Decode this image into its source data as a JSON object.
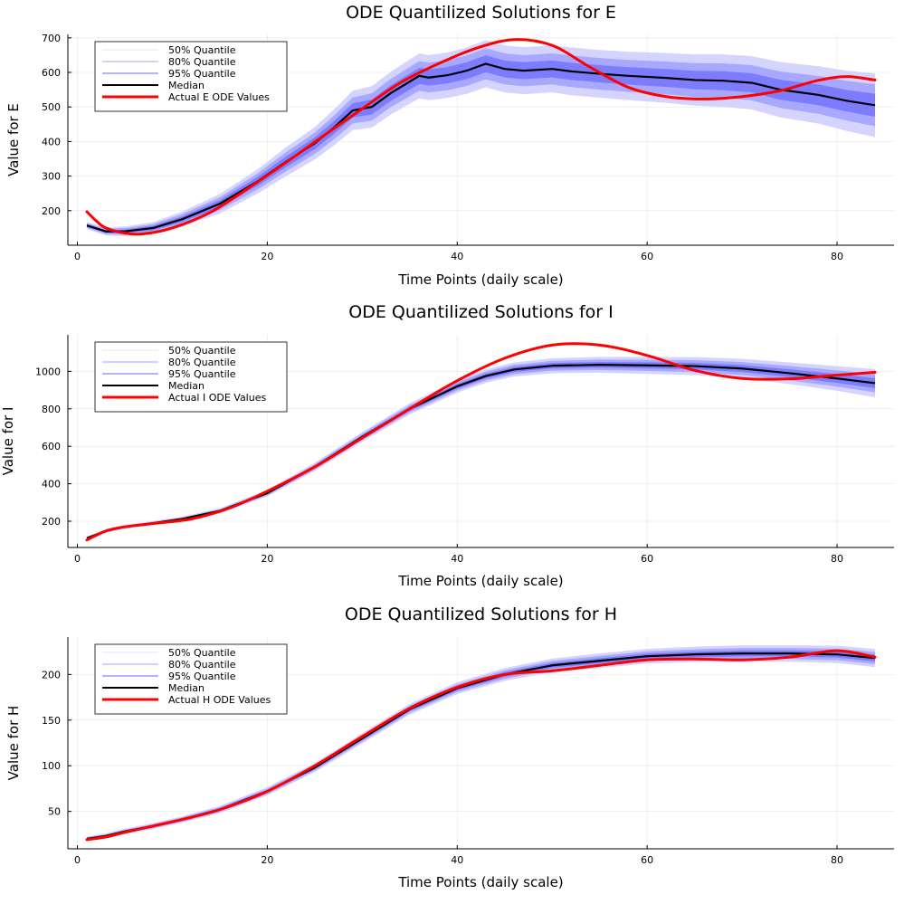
{
  "colors": {
    "band50": "#d4d4ff",
    "band80": "#a8a8ff",
    "band95": "#7c7cff",
    "median": "#000000",
    "actual": "#ff0000",
    "legend50": "#ededff",
    "legend80": "#c4c4ff",
    "legend95": "#9a9aff"
  },
  "chart_data": [
    {
      "type": "line",
      "title": "ODE Quantilized Solutions for E",
      "xlabel": "Time Points (daily scale)",
      "ylabel": "Value for E",
      "xlim": [
        -1,
        86
      ],
      "ylim": [
        100,
        710
      ],
      "xticks": [
        0,
        20,
        40,
        60,
        80
      ],
      "xtick_labels": [
        "0",
        "20",
        "40",
        "60",
        "80"
      ],
      "yticks": [
        200,
        300,
        400,
        500,
        600,
        700
      ],
      "ytick_labels": [
        "200",
        "300",
        "400",
        "500",
        "600",
        "700"
      ],
      "legend": [
        "50% Quantile",
        "80% Quantile",
        "95% Quantile",
        "Median",
        "Actual E ODE Values"
      ],
      "legend_position": "top-left",
      "x": [
        1,
        3,
        5,
        8,
        11,
        15,
        19,
        22,
        25,
        27,
        29,
        31,
        33,
        36,
        37,
        39,
        41,
        43,
        45,
        47,
        50,
        52,
        55,
        58,
        62,
        65,
        68,
        71,
        74,
        78,
        81,
        84
      ],
      "median": [
        157,
        140,
        140,
        150,
        175,
        220,
        285,
        342,
        395,
        440,
        490,
        500,
        540,
        590,
        585,
        592,
        605,
        625,
        610,
        605,
        610,
        603,
        596,
        590,
        584,
        578,
        576,
        570,
        550,
        535,
        518,
        505
      ],
      "spread": [
        10,
        12,
        14,
        17,
        22,
        28,
        35,
        42,
        47,
        52,
        57,
        60,
        62,
        65,
        65,
        66,
        67,
        68,
        68,
        68,
        68,
        69,
        69,
        70,
        72,
        74,
        76,
        77,
        80,
        83,
        87,
        92
      ],
      "actual": {
        "x": [
          1,
          2,
          3,
          5,
          7,
          10,
          14,
          18,
          22,
          26,
          30,
          34,
          38,
          42,
          46,
          50,
          54,
          58,
          62,
          66,
          70,
          74,
          78,
          81,
          84
        ],
        "y": [
          197,
          170,
          150,
          135,
          133,
          150,
          195,
          265,
          340,
          418,
          495,
          570,
          625,
          670,
          695,
          678,
          615,
          557,
          530,
          523,
          530,
          547,
          577,
          588,
          578
        ]
      }
    },
    {
      "type": "line",
      "title": "ODE Quantilized Solutions for I",
      "xlabel": "Time Points (daily scale)",
      "ylabel": "Value for I",
      "xlim": [
        -1,
        86
      ],
      "ylim": [
        60,
        1195
      ],
      "xticks": [
        0,
        20,
        40,
        60,
        80
      ],
      "xtick_labels": [
        "0",
        "20",
        "40",
        "60",
        "80"
      ],
      "yticks": [
        200,
        400,
        600,
        800,
        1000
      ],
      "ytick_labels": [
        "200",
        "400",
        "600",
        "800",
        "1000"
      ],
      "legend": [
        "50% Quantile",
        "80% Quantile",
        "95% Quantile",
        "Median",
        "Actual I ODE Values"
      ],
      "legend_position": "top-left",
      "x": [
        1,
        3,
        5,
        8,
        11,
        15,
        20,
        25,
        30,
        35,
        40,
        43,
        46,
        50,
        55,
        60,
        65,
        70,
        75,
        80,
        84
      ],
      "median": [
        110,
        148,
        170,
        190,
        212,
        255,
        350,
        490,
        650,
        800,
        920,
        975,
        1010,
        1030,
        1035,
        1032,
        1028,
        1015,
        990,
        962,
        937
      ],
      "spread": [
        8,
        9,
        10,
        11,
        12,
        14,
        18,
        22,
        26,
        30,
        34,
        36,
        38,
        40,
        42,
        45,
        48,
        52,
        58,
        66,
        75
      ],
      "actual": {
        "x": [
          1,
          3,
          5,
          8,
          12,
          16,
          20,
          25,
          30,
          35,
          40,
          45,
          50,
          55,
          60,
          65,
          70,
          75,
          80,
          84
        ],
        "y": [
          100,
          148,
          170,
          188,
          212,
          270,
          360,
          490,
          645,
          800,
          950,
          1070,
          1140,
          1140,
          1085,
          1005,
          962,
          960,
          980,
          995
        ]
      }
    },
    {
      "type": "line",
      "title": "ODE Quantilized Solutions for H",
      "xlabel": "Time Points (daily scale)",
      "ylabel": "Value for H",
      "xlim": [
        -1,
        86
      ],
      "ylim": [
        9,
        241
      ],
      "xticks": [
        0,
        20,
        40,
        60,
        80
      ],
      "xtick_labels": [
        "0",
        "20",
        "40",
        "60",
        "80"
      ],
      "yticks": [
        50,
        100,
        150,
        200
      ],
      "ytick_labels": [
        "50",
        "100",
        "150",
        "200"
      ],
      "legend": [
        "50% Quantile",
        "80% Quantile",
        "95% Quantile",
        "Median",
        "Actual H ODE Values"
      ],
      "legend_position": "top-left",
      "x": [
        1,
        3,
        5,
        8,
        11,
        15,
        20,
        25,
        30,
        35,
        40,
        45,
        50,
        55,
        60,
        65,
        70,
        75,
        80,
        84
      ],
      "median": [
        20,
        23,
        28,
        34,
        41,
        52,
        72,
        98,
        130,
        162,
        185,
        200,
        210,
        215,
        220,
        222,
        223,
        223,
        222,
        218
      ],
      "spread": [
        2.5,
        2.8,
        3,
        3.3,
        3.5,
        4,
        4.5,
        5,
        5.5,
        6,
        6.5,
        7,
        7.5,
        8,
        8,
        8.5,
        9,
        9,
        9.5,
        10
      ],
      "actual": {
        "x": [
          1,
          3,
          5,
          8,
          11,
          15,
          20,
          25,
          30,
          35,
          40,
          45,
          50,
          55,
          60,
          65,
          70,
          75,
          80,
          84
        ],
        "y": [
          19,
          22,
          27,
          34,
          41,
          52,
          72,
          100,
          132,
          163,
          186,
          200,
          204,
          210,
          216,
          217,
          216,
          219,
          226,
          219
        ]
      }
    }
  ]
}
